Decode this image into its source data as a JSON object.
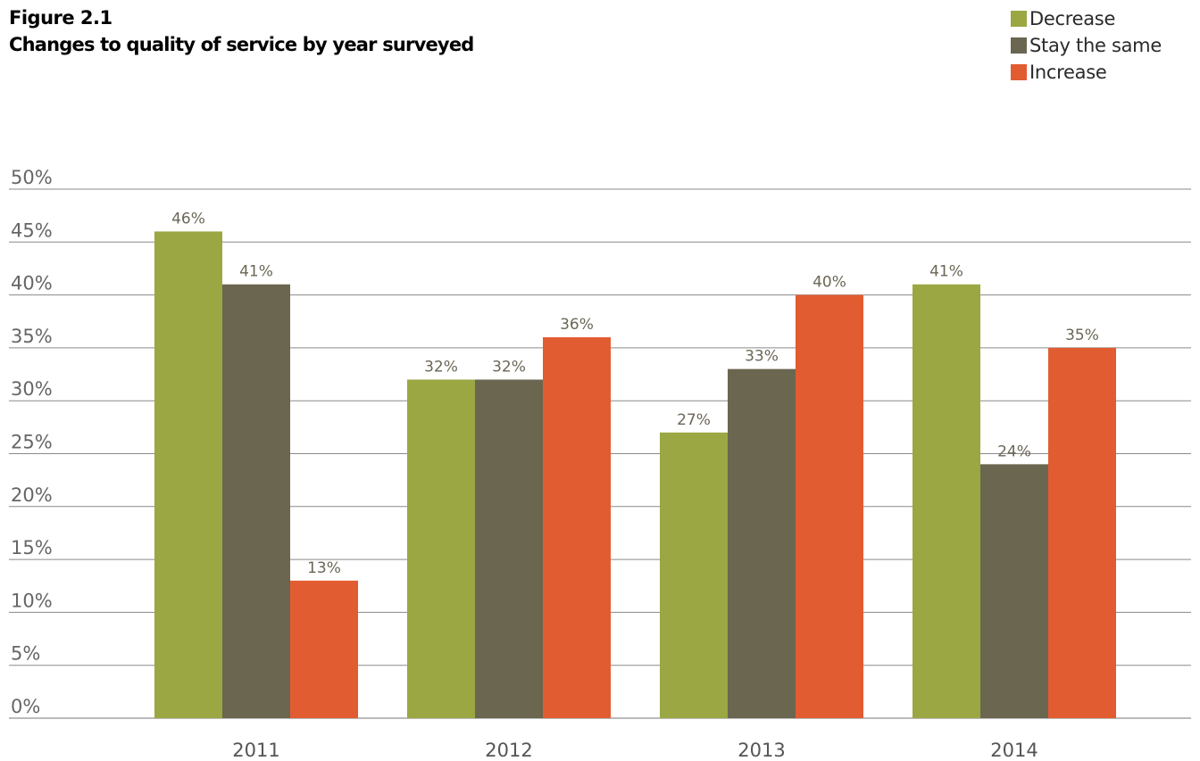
{
  "header": {
    "figure_label": "Figure 2.1",
    "title": "Changes to quality of service by year surveyed"
  },
  "legend": {
    "items": [
      {
        "label": "Decrease",
        "color": "#9ba743"
      },
      {
        "label": "Stay the same",
        "color": "#6a6650"
      },
      {
        "label": "Increase",
        "color": "#e25c31"
      }
    ]
  },
  "chart_data": {
    "type": "bar",
    "title": "Changes to quality of service by year surveyed",
    "xlabel": "",
    "ylabel": "",
    "categories": [
      "2011",
      "2012",
      "2013",
      "2014"
    ],
    "series": [
      {
        "name": "Decrease",
        "values": [
          46,
          32,
          27,
          41
        ],
        "labels": [
          "46%",
          "32%",
          "27%",
          "41%"
        ]
      },
      {
        "name": "Stay the same",
        "values": [
          41,
          32,
          33,
          24
        ],
        "labels": [
          "41%",
          "32%",
          "33%",
          "24%"
        ]
      },
      {
        "name": "Increase",
        "values": [
          13,
          36,
          40,
          35
        ],
        "labels": [
          "13%",
          "36%",
          "40%",
          "35%"
        ]
      }
    ],
    "ylim": [
      0,
      50
    ],
    "yticks": [
      "0%",
      "5%",
      "10%",
      "15%",
      "20%",
      "25%",
      "30%",
      "35%",
      "40%",
      "45%",
      "50%"
    ],
    "grid": true,
    "legend_position": "top-right"
  }
}
